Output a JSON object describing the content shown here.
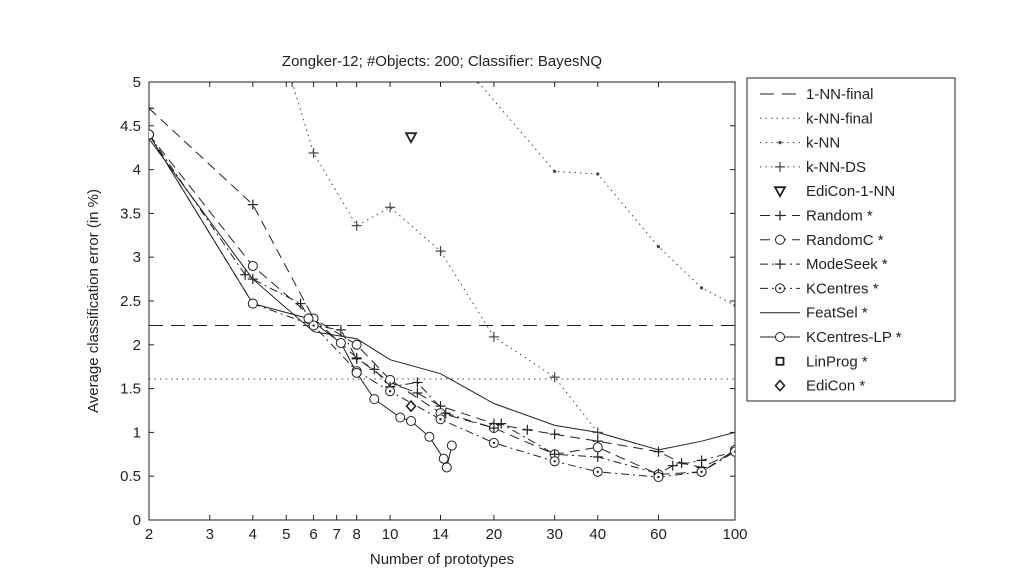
{
  "chart_data": {
    "type": "line",
    "title": "Zongker-12;  #Objects: 200;  Classifier: BayesNQ",
    "xlabel": "Number of prototypes",
    "ylabel": "Average classification error (in %)",
    "xscale": "log",
    "xlim": [
      2,
      100
    ],
    "ylim": [
      0,
      5
    ],
    "xticks": [
      2,
      3,
      4,
      5,
      6,
      7,
      8,
      10,
      14,
      20,
      30,
      40,
      60,
      100
    ],
    "yticks": [
      0,
      0.5,
      1,
      1.5,
      2,
      2.5,
      3,
      3.5,
      4,
      4.5,
      5
    ],
    "grid": false,
    "legend_position": "outside-right",
    "series": [
      {
        "name": "1-NN-final",
        "dash": "dashed",
        "marker": "none",
        "color": "#222222",
        "x": [
          2,
          100
        ],
        "y": [
          2.22,
          2.22
        ]
      },
      {
        "name": "k-NN-final",
        "dash": "dotted",
        "marker": "none",
        "color": "#444444",
        "x": [
          2,
          100
        ],
        "y": [
          1.61,
          1.61
        ]
      },
      {
        "name": "k-NN",
        "dash": "dotted",
        "marker": "dot",
        "color": "#444444",
        "x": [
          18,
          30,
          40,
          60,
          80,
          100
        ],
        "y": [
          5.0,
          3.98,
          3.95,
          3.12,
          2.65,
          2.45
        ]
      },
      {
        "name": "k-NN-DS",
        "dash": "dotted",
        "marker": "plus",
        "color": "#444444",
        "x": [
          5.2,
          6,
          8,
          10,
          14,
          20,
          30,
          40
        ],
        "y": [
          5.0,
          4.19,
          3.36,
          3.57,
          3.07,
          2.09,
          1.63,
          1.0
        ]
      },
      {
        "name": "EdiCon-1-NN",
        "dash": "none",
        "marker": "triangle-down",
        "color": "#222222",
        "x": [
          11.5
        ],
        "y": [
          4.37
        ]
      },
      {
        "name": "Random *",
        "dash": "longdash",
        "marker": "plus",
        "color": "#222222",
        "x": [
          2,
          4,
          6,
          8,
          10,
          12,
          14,
          20,
          25,
          30,
          40,
          60,
          70,
          80,
          100
        ],
        "y": [
          4.7,
          3.6,
          2.3,
          1.85,
          1.57,
          1.45,
          1.3,
          1.1,
          1.03,
          0.98,
          0.9,
          0.78,
          0.65,
          0.6,
          0.78
        ]
      },
      {
        "name": "RandomC *",
        "dash": "longdash",
        "marker": "circle",
        "color": "#222222",
        "x": [
          2,
          4,
          6,
          8,
          10,
          14,
          20,
          30,
          40,
          60,
          80,
          100
        ],
        "y": [
          4.4,
          2.9,
          2.3,
          2.0,
          1.6,
          1.22,
          1.05,
          0.75,
          0.83,
          0.52,
          0.55,
          0.8
        ]
      },
      {
        "name": "ModeSeek *",
        "dash": "dashdot",
        "marker": "plus",
        "color": "#222222",
        "x": [
          2,
          3.8,
          4,
          5.5,
          6,
          7.2,
          8,
          9,
          10,
          12,
          14.5,
          20,
          21,
          30,
          40,
          60,
          66,
          80,
          100
        ],
        "y": [
          4.4,
          2.8,
          2.75,
          2.47,
          2.22,
          2.17,
          1.84,
          1.72,
          1.52,
          1.57,
          1.22,
          1.05,
          1.1,
          0.75,
          0.72,
          0.53,
          0.62,
          0.68,
          0.78
        ]
      },
      {
        "name": "KCentres *",
        "dash": "dashdot",
        "marker": "circle-dot",
        "color": "#222222",
        "x": [
          2,
          4,
          6,
          8,
          10,
          14,
          20,
          30,
          40,
          60,
          80,
          100
        ],
        "y": [
          4.4,
          2.47,
          2.22,
          1.7,
          1.47,
          1.15,
          0.88,
          0.67,
          0.55,
          0.49,
          0.55,
          0.78
        ]
      },
      {
        "name": "FeatSel *",
        "dash": "solid",
        "marker": "none",
        "color": "#222222",
        "x": [
          2,
          4,
          6,
          8,
          10,
          14,
          20,
          30,
          40,
          60,
          80,
          100
        ],
        "y": [
          4.35,
          2.75,
          2.15,
          2.07,
          1.83,
          1.67,
          1.33,
          1.08,
          1.0,
          0.8,
          0.9,
          1.0
        ]
      },
      {
        "name": "KCentres-LP *",
        "dash": "solid",
        "marker": "circle",
        "color": "#222222",
        "x": [
          2,
          4,
          5.8,
          7.2,
          8,
          9,
          10.7,
          11.5,
          13,
          14.3,
          14.6,
          15.1
        ],
        "y": [
          4.4,
          2.47,
          2.3,
          2.02,
          1.68,
          1.38,
          1.17,
          1.13,
          0.95,
          0.7,
          0.6,
          0.85
        ]
      },
      {
        "name": "LinProg *",
        "dash": "none",
        "marker": "square",
        "color": "#222222",
        "x": [],
        "y": []
      },
      {
        "name": "EdiCon *",
        "dash": "none",
        "marker": "diamond",
        "color": "#222222",
        "x": [
          11.5
        ],
        "y": [
          1.3
        ]
      }
    ]
  }
}
